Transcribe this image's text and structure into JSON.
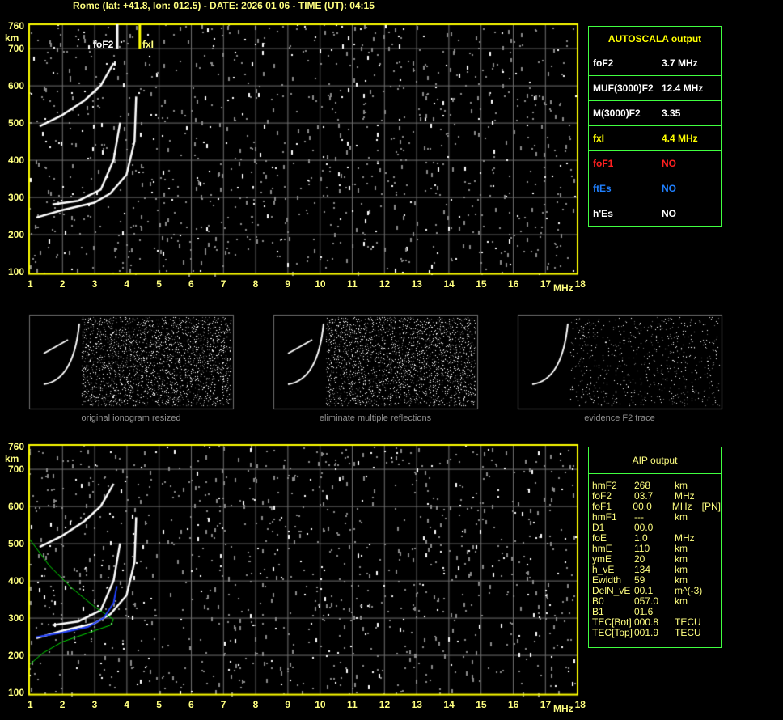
{
  "header": "Rome (lat: +41.8, lon: 012.5) - DATE: 2026 01 06 - TIME (UT): 04:15",
  "axes": {
    "x_ticks": [
      1,
      2,
      3,
      4,
      5,
      6,
      7,
      8,
      9,
      10,
      11,
      12,
      13,
      14,
      15,
      16,
      17,
      18
    ],
    "x_unit": "MHz",
    "y_ticks": [
      100,
      200,
      300,
      400,
      500,
      600,
      700,
      760
    ],
    "y_unit": "km"
  },
  "markers": {
    "foF2_label": "foF2",
    "fxI_label": "fxI",
    "foF2": 3.7,
    "fxI": 4.4
  },
  "autoscala": {
    "title": "AUTOSCALA output",
    "rows": [
      {
        "key": "foF2",
        "value": "3.7 MHz",
        "color": "#ffffff"
      },
      {
        "key": "MUF(3000)F2",
        "value": "12.4 MHz",
        "color": "#ffffff"
      },
      {
        "key": "M(3000)F2",
        "value": "3.35",
        "color": "#ffffff"
      },
      {
        "key": "fxI",
        "value": "4.4 MHz",
        "color": "#ffff00"
      },
      {
        "key": "foF1",
        "value": "NO",
        "color": "#ff2020"
      },
      {
        "key": "ftEs",
        "value": "NO",
        "color": "#2080ff"
      },
      {
        "key": "h'Es",
        "value": "NO",
        "color": "#ffffff"
      }
    ]
  },
  "thumbnails": [
    "original ionogram resized",
    "eliminate multiple reflections",
    "evidence F2 trace"
  ],
  "aip": {
    "title": "AIP output",
    "rows": [
      [
        "hmF2",
        "268",
        "km",
        ""
      ],
      [
        "foF2",
        "03.7",
        "MHz",
        ""
      ],
      [
        "foF1",
        "00.0",
        "MHz",
        "[PN]"
      ],
      [
        "hmF1",
        "---",
        "km",
        ""
      ],
      [
        "D1",
        "00.0",
        "",
        ""
      ],
      [
        "foE",
        "1.0",
        "MHz",
        ""
      ],
      [
        "hmE",
        "110",
        "km",
        ""
      ],
      [
        "ymE",
        "20",
        "km",
        ""
      ],
      [
        "h_vE",
        "134",
        "km",
        ""
      ],
      [
        "Ewidth",
        "59",
        "km",
        ""
      ],
      [
        "DelN_vE",
        "00.1",
        "m^(-3)",
        ""
      ],
      [
        "B0",
        "057.0",
        "km",
        ""
      ],
      [
        "B1",
        "01.6",
        "",
        ""
      ],
      [
        "TEC[Bot]",
        "000.8",
        "TECU",
        ""
      ],
      [
        "TEC[Top]",
        "001.9",
        "TECU",
        ""
      ]
    ]
  }
}
